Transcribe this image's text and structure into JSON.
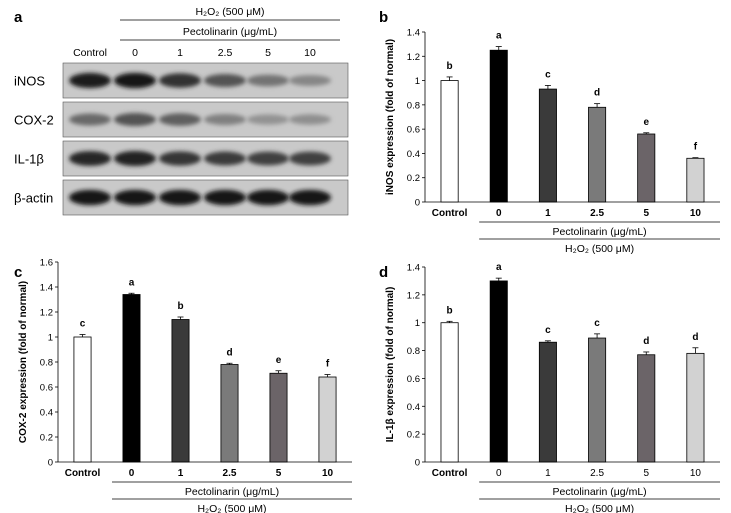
{
  "panel_labels": [
    "a",
    "b",
    "c",
    "d"
  ],
  "blot": {
    "treatment": "H₂O₂ (500 μM)",
    "compound": "Pectolinarin (μg/mL)",
    "lanes": [
      "Control",
      "0",
      "1",
      "2.5",
      "5",
      "10"
    ],
    "rows": [
      {
        "label": "iNOS",
        "intensity": [
          0.9,
          0.92,
          0.8,
          0.62,
          0.45,
          0.35
        ]
      },
      {
        "label": "COX-2",
        "intensity": [
          0.5,
          0.62,
          0.55,
          0.38,
          0.28,
          0.3
        ]
      },
      {
        "label": "IL-1β",
        "intensity": [
          0.85,
          0.88,
          0.78,
          0.74,
          0.72,
          0.72
        ]
      },
      {
        "label": "β-actin",
        "intensity": [
          0.92,
          0.92,
          0.92,
          0.92,
          0.92,
          0.92
        ]
      }
    ]
  },
  "chart_data": [
    {
      "panel": "b",
      "type": "bar",
      "categories": [
        "Control",
        "0",
        "1",
        "2.5",
        "5",
        "10"
      ],
      "values": [
        1.0,
        1.25,
        0.93,
        0.78,
        0.56,
        0.36
      ],
      "errors": [
        0.03,
        0.03,
        0.03,
        0.03,
        0.01,
        0.005
      ],
      "letters": [
        "b",
        "a",
        "c",
        "d",
        "e",
        "f"
      ],
      "colors": [
        "#ffffff",
        "#000000",
        "#3a3a3a",
        "#7a7a7a",
        "#6b6468",
        "#d2d2d2"
      ],
      "ylabel": "iNOS expression (fold of normal)",
      "ylim": [
        0,
        1.4
      ],
      "yticks": [
        "0",
        "0.2",
        "0.4",
        "0.6",
        "0.8",
        "1",
        "1.2",
        "1.4"
      ],
      "group1": "Pectolinarin (μg/mL)",
      "group2": "H₂O₂ (500 μM)"
    },
    {
      "panel": "c",
      "type": "bar",
      "categories": [
        "Control",
        "0",
        "1",
        "2.5",
        "5",
        "10"
      ],
      "values": [
        1.0,
        1.34,
        1.14,
        0.78,
        0.71,
        0.68
      ],
      "errors": [
        0.02,
        0.01,
        0.02,
        0.01,
        0.02,
        0.02
      ],
      "letters": [
        "c",
        "a",
        "b",
        "d",
        "e",
        "f"
      ],
      "colors": [
        "#ffffff",
        "#000000",
        "#3a3a3a",
        "#7a7a7a",
        "#6b6468",
        "#d2d2d2"
      ],
      "ylabel": "COX-2 expression (fold of normal)",
      "ylim": [
        0,
        1.6
      ],
      "yticks": [
        "0",
        "0.2",
        "0.4",
        "0.6",
        "0.8",
        "1",
        "1.2",
        "1.4",
        "1.6"
      ],
      "group1": "Pectolinarin (μg/mL)",
      "group2": "H₂O₂ (500 μM)"
    },
    {
      "panel": "d",
      "type": "bar",
      "categories": [
        "Control",
        "0",
        "1",
        "2.5",
        "5",
        "10"
      ],
      "values": [
        1.0,
        1.3,
        0.86,
        0.89,
        0.77,
        0.78
      ],
      "errors": [
        0.01,
        0.02,
        0.01,
        0.03,
        0.02,
        0.04
      ],
      "letters": [
        "b",
        "a",
        "c",
        "c",
        "d",
        "d"
      ],
      "colors": [
        "#ffffff",
        "#000000",
        "#3a3a3a",
        "#7a7a7a",
        "#6b6468",
        "#d2d2d2"
      ],
      "ylabel": "IL-1β expression (fold of normal)",
      "ylim": [
        0,
        1.4
      ],
      "yticks": [
        "0",
        "0.2",
        "0.4",
        "0.6",
        "0.8",
        "1",
        "1.2",
        "1.4"
      ],
      "group1": "Pectolinarin (μg/mL)",
      "group2": "H₂O₂ (500 μM)"
    }
  ]
}
